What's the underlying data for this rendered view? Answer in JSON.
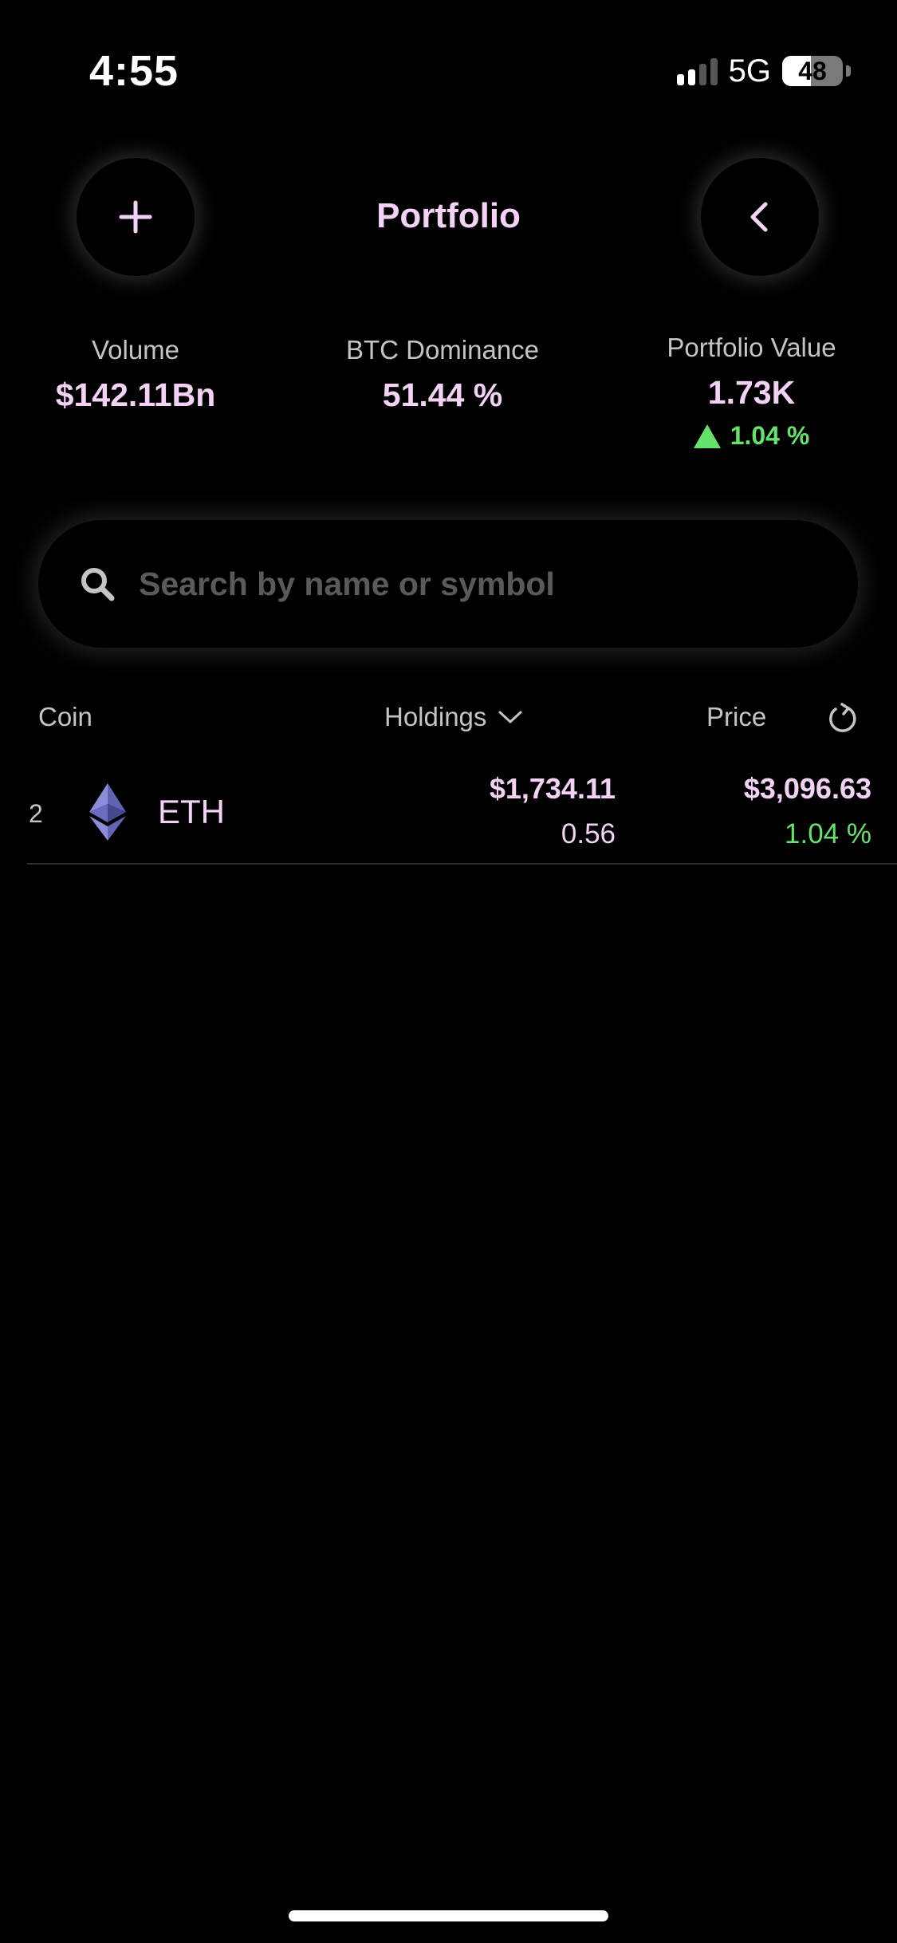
{
  "status_bar": {
    "time": "4:55",
    "network": "5G",
    "battery": "48"
  },
  "header": {
    "title": "Portfolio",
    "add_icon": "plus-icon",
    "back_icon": "chevron-left-icon"
  },
  "stats": {
    "volume": {
      "label": "Volume",
      "value": "$142.11Bn"
    },
    "btc_dominance": {
      "label": "BTC Dominance",
      "value": "51.44 %"
    },
    "portfolio_value": {
      "label": "Portfolio Value",
      "value": "1.73K",
      "change": "1.04 %",
      "direction": "up"
    }
  },
  "search": {
    "placeholder": "Search by name or symbol",
    "value": ""
  },
  "columns": {
    "coin": "Coin",
    "holdings": "Holdings",
    "price": "Price"
  },
  "coins": [
    {
      "rank": "2",
      "symbol": "ETH",
      "holding_value": "$1,734.11",
      "holding_amount": "0.56",
      "price": "$3,096.63",
      "change": "1.04 %"
    }
  ],
  "colors": {
    "background": "#000000",
    "accent": "#f3d2f5",
    "positive": "#63e36b",
    "muted": "#c4c4c4"
  }
}
